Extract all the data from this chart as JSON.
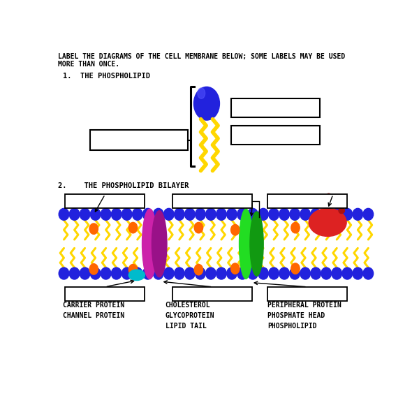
{
  "title_text": "LABEL THE DIAGRAMS OF THE CELL MEMBRANE BELOW; SOME LABELS MAY BE USED\nMORE THAN ONCE.",
  "section1_label": "1.  THE PHOSPHOLIPID",
  "section2_label": "2.    THE PHOSPHOLIPID BILAYER",
  "footer_col1": "CARRIER PROTEIN\nCHANNEL PROTEIN",
  "footer_col2": "CHOLESTEROL\nGLYCOPROTEIN\nLIPID TAIL",
  "footer_col3": "PERIPHERAL PROTEIN\nPHOSPHATE HEAD\nPHOSPHOLIPID",
  "bg_color": "#FFFFFF",
  "blue_color": "#2222DD",
  "blue_highlight": "#5555FF",
  "tail_color": "#FFD700",
  "magenta_color": "#CC22AA",
  "magenta_dark": "#991188",
  "green_color": "#22DD22",
  "green_dark": "#119911",
  "red_color": "#DD2222",
  "red_dark": "#AA1111",
  "orange_color": "#FF6600",
  "cyan_color": "#00BBCC",
  "font_family": "monospace"
}
